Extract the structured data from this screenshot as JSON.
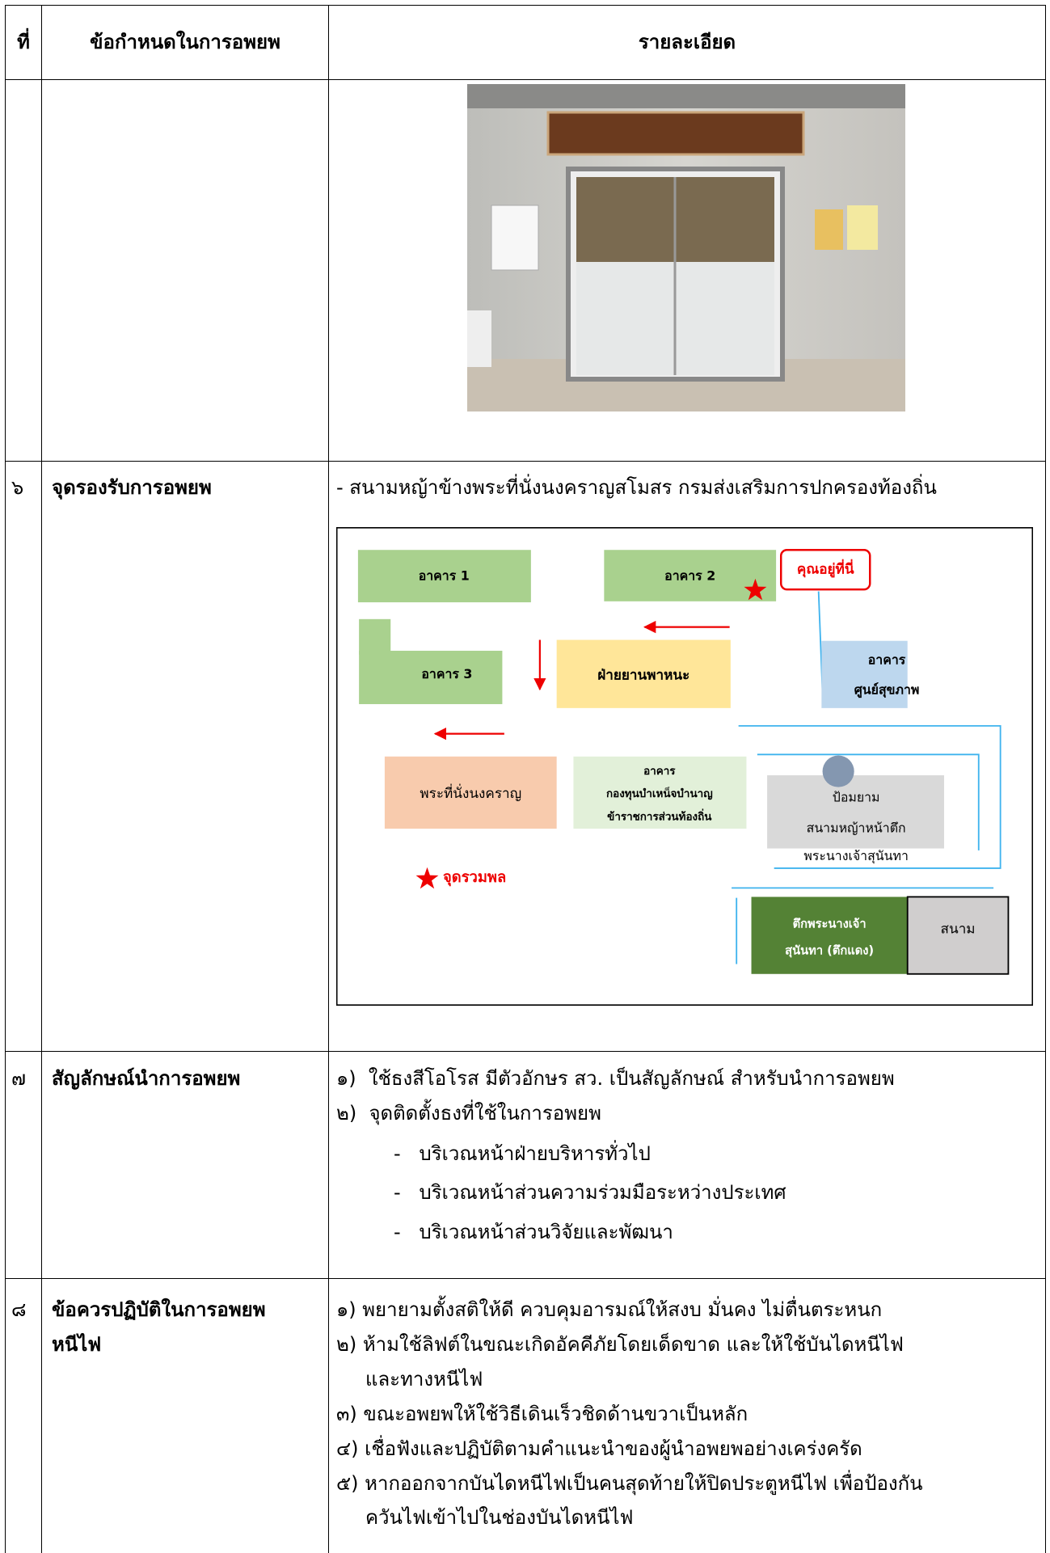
{
  "header": [
    "ที่",
    "ข้อกำหนดในการอพยพ",
    "รายละเอียด"
  ],
  "rows": [
    {
      "number": "๖",
      "topic": [
        "จุดรองรับการอพยพ"
      ],
      "detail": "- สนามหญ้าข้างพระที่นั่งนงคราญสโมสร กรมส่งเสริมการปกครองท้องถิ่น",
      "map": {
        "building1": "อาคาร 1",
        "building2": "อาคาร 2",
        "you_are_here": "คุณอยู่ที่นี่",
        "building3": "อาคาร 3",
        "transport": "ฝ่ายยานพาหนะ",
        "health": [
          "อาคาร",
          "ศูนย์สุขภาพ"
        ],
        "palace": "พระที่นั่งนงคราญ",
        "pension": [
          "อาคาร",
          "กองทุนบำเหน็จบำนาญ",
          "ข้าราชการส่วนท้องถิ่น"
        ],
        "guard": [
          "ป้อมยาม",
          "สนามหญ้าหน้าตึก",
          "พระนางเจ้าสุนันทา"
        ],
        "assembly": "จุดรวมพล",
        "red_building": [
          "ตึกพระนางเจ้า",
          "สุนันทา (ตึกแดง)"
        ],
        "field": "สนาม"
      }
    },
    {
      "number": "๗",
      "topic": [
        "สัญลักษณ์นำการอพยพ"
      ],
      "items": [
        "๑)  ใช้ธงสีโอโรส มีตัวอักษร สว. เป็นสัญลักษณ์ สำหรับนำการอพยพ",
        "๒)  จุดติดตั้งธงที่ใช้ในการอพยพ"
      ],
      "sub_items": [
        "-   บริเวณหน้าฝ่ายบริหารทั่วไป",
        "-   บริเวณหน้าส่วนความร่วมมือระหว่างประเทศ",
        "-   บริเวณหน้าส่วนวิจัยและพัฒนา"
      ]
    },
    {
      "number": "๘",
      "topic": [
        "ข้อควรปฏิบัติในการอพยพ",
        "หนีไฟ"
      ],
      "items": [
        [
          "๑) พยายามตั้งสติให้ดี ควบคุมอารมณ์ให้สงบ มั่นคง ไม่ตื่นตระหนก"
        ],
        [
          "๒) ห้ามใช้ลิฟต์ในขณะเกิดอัคคีภัยโดยเด็ดขาด และให้ใช้บันไดหนีไฟ",
          "และทางหนีไฟ"
        ],
        [
          "๓) ขณะอพยพให้ใช้วิธีเดินเร็วชิดด้านขวาเป็นหลัก"
        ],
        [
          "๔) เชื่อฟังและปฏิบัติตามคำแนะนำของผู้นำอพยพอย่างเคร่งครัด"
        ],
        [
          "๕) หากออกจากบันไดหนีไฟเป็นคนสุดท้ายให้ปิดประตูหนีไฟ เพื่อป้องกัน",
          "ควันไฟเข้าไปในช่องบันไดหนีไฟ"
        ]
      ]
    }
  ]
}
